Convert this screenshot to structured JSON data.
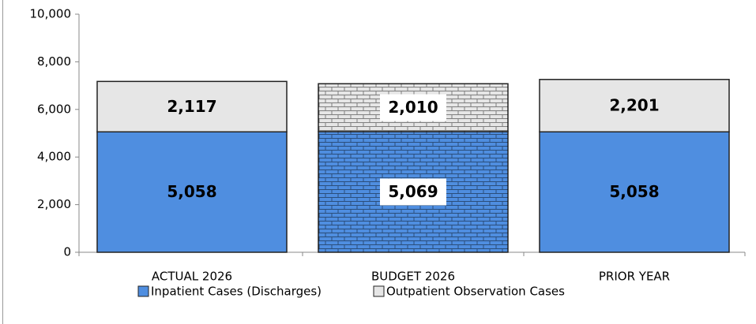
{
  "chart_data": {
    "type": "stacked_bar",
    "categories": [
      "ACTUAL 2026",
      "BUDGET 2026",
      "PRIOR YEAR"
    ],
    "series": [
      {
        "name": "Inpatient Cases (Discharges)",
        "color": "#4f8ee0",
        "values": [
          5058,
          5069,
          5058
        ],
        "value_labels": [
          "5,058",
          "5,069",
          "5,058"
        ]
      },
      {
        "name": "Outpatient Observation Cases",
        "color": "#e6e6e6",
        "values": [
          2117,
          2010,
          2201
        ],
        "value_labels": [
          "2,117",
          "2,010",
          "2,201"
        ]
      }
    ],
    "pattern": [
      null,
      "brick",
      null
    ],
    "ylim": [
      0,
      10000
    ],
    "yticks": [
      0,
      {
        "value": 2000,
        "label": "2,000"
      },
      {
        "value": 4000,
        "label": "4,000"
      },
      {
        "value": 6000,
        "label": "6,000"
      },
      {
        "value": 8000,
        "label": "8,000"
      },
      {
        "value": 10000,
        "label": "10,000"
      }
    ],
    "legend": "bottom"
  }
}
